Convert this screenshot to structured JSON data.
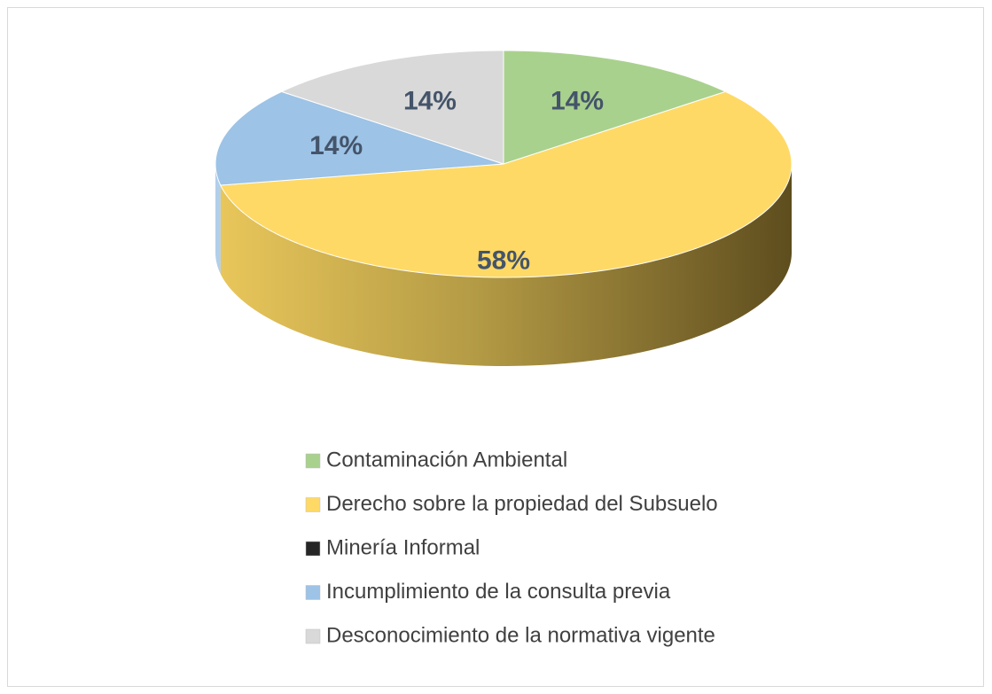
{
  "chart_data": {
    "type": "pie",
    "categories": [
      "Contaminación Ambiental",
      "Derecho sobre la propiedad del Subsuelo",
      "Minería Informal",
      "Incumplimiento de la consulta previa",
      "Desconocimiento de la normativa vigente"
    ],
    "values": [
      14,
      58,
      0,
      14,
      14
    ],
    "value_labels": [
      "14%",
      "58%",
      null,
      "14%",
      "14%"
    ],
    "colors": [
      "#a9d18e",
      "#ffd966",
      "#262626",
      "#9dc3e6",
      "#d9d9d9"
    ],
    "legend": "bottom"
  }
}
